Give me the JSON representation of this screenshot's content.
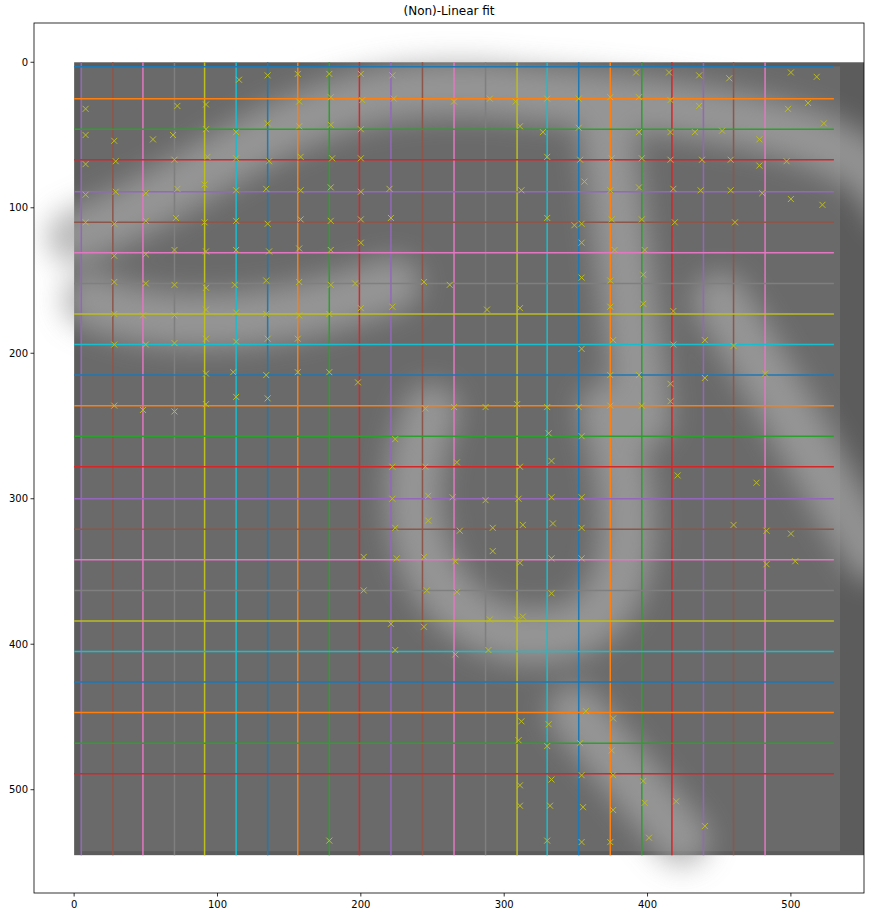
{
  "chart_data": {
    "type": "scatter",
    "title": "(Non)-Linear fit",
    "xlim": [
      -28,
      551
    ],
    "ylim": [
      571,
      -27
    ],
    "xticks": [
      0,
      100,
      200,
      300,
      400,
      500
    ],
    "yticks": [
      0,
      100,
      200,
      300,
      400,
      500
    ],
    "grid": false,
    "series": [
      {
        "type": "line",
        "color": "#9467bd",
        "x": [
          5,
          5
        ],
        "values": [
          0,
          545
        ]
      },
      {
        "type": "line",
        "color": "#8c564b",
        "x": [
          27,
          27
        ],
        "values": [
          0,
          545
        ]
      },
      {
        "type": "line",
        "color": "#e377c2",
        "x": [
          48,
          48
        ],
        "values": [
          0,
          545
        ]
      },
      {
        "type": "line",
        "color": "#7f7f7f",
        "x": [
          70,
          70
        ],
        "values": [
          0,
          545
        ]
      },
      {
        "type": "line",
        "color": "#bcbd22",
        "x": [
          91,
          91
        ],
        "values": [
          0,
          545
        ]
      },
      {
        "type": "line",
        "color": "#17becf",
        "x": [
          113,
          113
        ],
        "values": [
          0,
          545
        ]
      },
      {
        "type": "line",
        "color": "#1f77b4",
        "x": [
          135,
          135
        ],
        "values": [
          0,
          545
        ]
      },
      {
        "type": "line",
        "color": "#ff7f0e",
        "x": [
          156,
          156
        ],
        "values": [
          0,
          545
        ]
      },
      {
        "type": "line",
        "color": "#2ca02c",
        "x": [
          178,
          178
        ],
        "values": [
          0,
          545
        ]
      },
      {
        "type": "line",
        "color": "#d62728",
        "x": [
          199,
          199
        ],
        "values": [
          0,
          545
        ]
      },
      {
        "type": "line",
        "color": "#9467bd",
        "x": [
          221,
          221
        ],
        "values": [
          0,
          545
        ]
      },
      {
        "type": "line",
        "color": "#8c564b",
        "x": [
          243,
          243
        ],
        "values": [
          0,
          545
        ]
      },
      {
        "type": "line",
        "color": "#e377c2",
        "x": [
          265,
          265
        ],
        "values": [
          0,
          545
        ]
      },
      {
        "type": "line",
        "color": "#7f7f7f",
        "x": [
          287,
          287
        ],
        "values": [
          0,
          545
        ]
      },
      {
        "type": "line",
        "color": "#bcbd22",
        "x": [
          309,
          309
        ],
        "values": [
          0,
          545
        ]
      },
      {
        "type": "line",
        "color": "#17becf",
        "x": [
          330,
          330
        ],
        "values": [
          0,
          545
        ]
      },
      {
        "type": "line",
        "color": "#1f77b4",
        "x": [
          352,
          352
        ],
        "values": [
          0,
          545
        ]
      },
      {
        "type": "line",
        "color": "#ff7f0e",
        "x": [
          374,
          374
        ],
        "values": [
          0,
          545
        ]
      },
      {
        "type": "line",
        "color": "#2ca02c",
        "x": [
          396,
          396
        ],
        "values": [
          0,
          545
        ]
      },
      {
        "type": "line",
        "color": "#d62728",
        "x": [
          417,
          417
        ],
        "values": [
          0,
          545
        ]
      },
      {
        "type": "line",
        "color": "#9467bd",
        "x": [
          439,
          439
        ],
        "values": [
          0,
          545
        ]
      },
      {
        "type": "line",
        "color": "#8c564b",
        "x": [
          460,
          460
        ],
        "values": [
          0,
          545
        ]
      },
      {
        "type": "line",
        "color": "#e377c2",
        "x": [
          482,
          482
        ],
        "values": [
          0,
          545
        ]
      },
      {
        "type": "line",
        "color": "#1f77b4",
        "x": [
          0,
          530
        ],
        "values": [
          3,
          3
        ]
      },
      {
        "type": "line",
        "color": "#ff7f0e",
        "x": [
          0,
          530
        ],
        "values": [
          25,
          25
        ]
      },
      {
        "type": "line",
        "color": "#2ca02c",
        "x": [
          0,
          530
        ],
        "values": [
          46,
          46
        ]
      },
      {
        "type": "line",
        "color": "#d62728",
        "x": [
          0,
          530
        ],
        "values": [
          67,
          67
        ]
      },
      {
        "type": "line",
        "color": "#9467bd",
        "x": [
          0,
          530
        ],
        "values": [
          89,
          89
        ]
      },
      {
        "type": "line",
        "color": "#8c564b",
        "x": [
          0,
          530
        ],
        "values": [
          110,
          110
        ]
      },
      {
        "type": "line",
        "color": "#e377c2",
        "x": [
          0,
          530
        ],
        "values": [
          131,
          131
        ]
      },
      {
        "type": "line",
        "color": "#7f7f7f",
        "x": [
          0,
          530
        ],
        "values": [
          152,
          152
        ]
      },
      {
        "type": "line",
        "color": "#bcbd22",
        "x": [
          0,
          530
        ],
        "values": [
          173,
          173
        ]
      },
      {
        "type": "line",
        "color": "#17becf",
        "x": [
          0,
          530
        ],
        "values": [
          194,
          194
        ]
      },
      {
        "type": "line",
        "color": "#1f77b4",
        "x": [
          0,
          530
        ],
        "values": [
          215,
          215
        ]
      },
      {
        "type": "line",
        "color": "#ff7f0e",
        "x": [
          0,
          530
        ],
        "values": [
          236,
          236
        ]
      },
      {
        "type": "line",
        "color": "#2ca02c",
        "x": [
          0,
          530
        ],
        "values": [
          257,
          257
        ]
      },
      {
        "type": "line",
        "color": "#d62728",
        "x": [
          0,
          530
        ],
        "values": [
          278,
          278
        ]
      },
      {
        "type": "line",
        "color": "#9467bd",
        "x": [
          0,
          530
        ],
        "values": [
          300,
          300
        ]
      },
      {
        "type": "line",
        "color": "#8c564b",
        "x": [
          0,
          530
        ],
        "values": [
          321,
          321
        ]
      },
      {
        "type": "line",
        "color": "#e377c2",
        "x": [
          0,
          530
        ],
        "values": [
          342,
          342
        ]
      },
      {
        "type": "line",
        "color": "#7f7f7f",
        "x": [
          0,
          530
        ],
        "values": [
          363,
          363
        ]
      },
      {
        "type": "line",
        "color": "#bcbd22",
        "x": [
          0,
          530
        ],
        "values": [
          384,
          384
        ]
      },
      {
        "type": "line",
        "color": "#17becf",
        "x": [
          0,
          530
        ],
        "values": [
          405,
          405
        ]
      },
      {
        "type": "line",
        "color": "#1f77b4",
        "x": [
          0,
          530
        ],
        "values": [
          426,
          426
        ]
      },
      {
        "type": "line",
        "color": "#ff7f0e",
        "x": [
          0,
          530
        ],
        "values": [
          447,
          447
        ]
      },
      {
        "type": "line",
        "color": "#2ca02c",
        "x": [
          0,
          530
        ],
        "values": [
          468,
          468
        ]
      },
      {
        "type": "line",
        "color": "#d62728",
        "x": [
          0,
          530
        ],
        "values": [
          489,
          489
        ]
      },
      {
        "type": "scatter",
        "color": "#bcbd22",
        "marker": "x",
        "x": [
          178,
          200,
          222,
          156,
          135,
          115,
          392,
          415,
          436,
          457,
          500,
          518,
          157,
          179,
          201,
          223,
          265,
          290,
          308,
          330,
          352,
          374,
          394,
          416,
          8,
          72,
          92,
          498,
          512,
          436,
          8,
          28,
          55,
          69,
          92,
          113,
          135,
          157,
          179,
          200,
          311,
          327,
          352,
          394,
          416,
          433,
          452,
          523,
          8,
          29,
          70,
          93,
          113,
          136,
          158,
          180,
          200,
          330,
          353,
          375,
          396,
          416,
          438,
          458,
          478,
          497,
          478,
          8,
          29,
          50,
          72,
          91,
          113,
          134,
          158,
          179,
          200,
          220,
          312,
          356,
          374,
          394,
          418,
          437,
          458,
          480,
          500,
          522,
          8,
          28,
          50,
          71,
          91,
          113,
          135,
          158,
          179,
          200,
          221,
          330,
          349,
          354,
          375,
          396,
          419,
          461,
          28,
          50,
          70,
          92,
          113,
          136,
          157,
          179,
          200,
          354,
          377,
          398,
          28,
          50,
          70,
          92,
          112,
          134,
          157,
          179,
          196,
          244,
          262,
          354,
          374,
          397,
          28,
          48,
          70,
          92,
          113,
          134,
          157,
          178,
          200,
          222,
          288,
          311,
          374,
          397,
          418,
          28,
          50,
          70,
          92,
          113,
          135,
          156,
          354,
          376,
          418,
          440,
          460,
          92,
          111,
          134,
          156,
          178,
          198,
          374,
          394,
          416,
          440,
          482,
          28,
          48,
          70,
          92,
          113,
          135,
          245,
          265,
          287,
          309,
          330,
          352,
          374,
          396,
          416,
          224,
          331,
          354,
          222,
          245,
          267,
          311,
          333,
          421,
          476,
          222,
          247,
          264,
          287,
          310,
          333,
          354,
          224,
          247,
          269,
          292,
          313,
          334,
          354,
          460,
          483,
          500,
          202,
          225,
          244,
          266,
          292,
          311,
          333,
          354,
          483,
          503,
          202,
          246,
          267,
          333,
          221,
          244,
          290,
          309,
          313,
          224,
          266,
          289,
          312,
          331,
          310,
          330,
          353,
          357,
          376,
          375,
          354,
          311,
          333,
          376,
          397,
          311,
          332,
          355,
          376,
          398,
          330,
          354,
          374,
          401,
          420,
          440,
          178
        ],
        "values": [
          8,
          8,
          9,
          8,
          9,
          12,
          7,
          7,
          9,
          11,
          7,
          10,
          27,
          24,
          26,
          25,
          27,
          25,
          27,
          25,
          25,
          24,
          24,
          26,
          32,
          30,
          29,
          32,
          28,
          30,
          50,
          54,
          53,
          50,
          46,
          48,
          42,
          44,
          43,
          46,
          44,
          48,
          45,
          48,
          48,
          48,
          47,
          42,
          70,
          68,
          67,
          65,
          66,
          68,
          65,
          66,
          66,
          65,
          67,
          66,
          66,
          67,
          67,
          67,
          71,
          68,
          53,
          91,
          89,
          90,
          87,
          84,
          88,
          87,
          88,
          86,
          89,
          87,
          88,
          82,
          88,
          86,
          87,
          88,
          88,
          90,
          94,
          98,
          110,
          111,
          109,
          107,
          110,
          109,
          111,
          108,
          109,
          108,
          107,
          107,
          112,
          111,
          108,
          108,
          110,
          110,
          133,
          132,
          129,
          130,
          129,
          130,
          128,
          129,
          124,
          124,
          129,
          129,
          151,
          152,
          153,
          155,
          153,
          150,
          151,
          153,
          152,
          151,
          153,
          148,
          150,
          146,
          173,
          174,
          174,
          170,
          172,
          173,
          174,
          173,
          169,
          168,
          170,
          169,
          168,
          166,
          171,
          194,
          194,
          193,
          190,
          192,
          190,
          190,
          197,
          191,
          194,
          191,
          195,
          214,
          213,
          215,
          213,
          213,
          220,
          215,
          215,
          221,
          217,
          214,
          236,
          239,
          240,
          235,
          230,
          231,
          238,
          237,
          237,
          235,
          237,
          237,
          236,
          236,
          233,
          259,
          255,
          257,
          278,
          278,
          275,
          278,
          274,
          284,
          289,
          300,
          298,
          299,
          301,
          300,
          299,
          299,
          320,
          315,
          322,
          320,
          318,
          317,
          320,
          318,
          322,
          324,
          340,
          341,
          340,
          343,
          336,
          344,
          341,
          341,
          345,
          343,
          363,
          363,
          364,
          365,
          386,
          388,
          383,
          383,
          381,
          404,
          407,
          404,
          453,
          455,
          466,
          470,
          468,
          446,
          451,
          473,
          490,
          497,
          493,
          490,
          494,
          511,
          511,
          512,
          514,
          509,
          535,
          536,
          536,
          533,
          508,
          525,
          535
        ]
      }
    ]
  }
}
